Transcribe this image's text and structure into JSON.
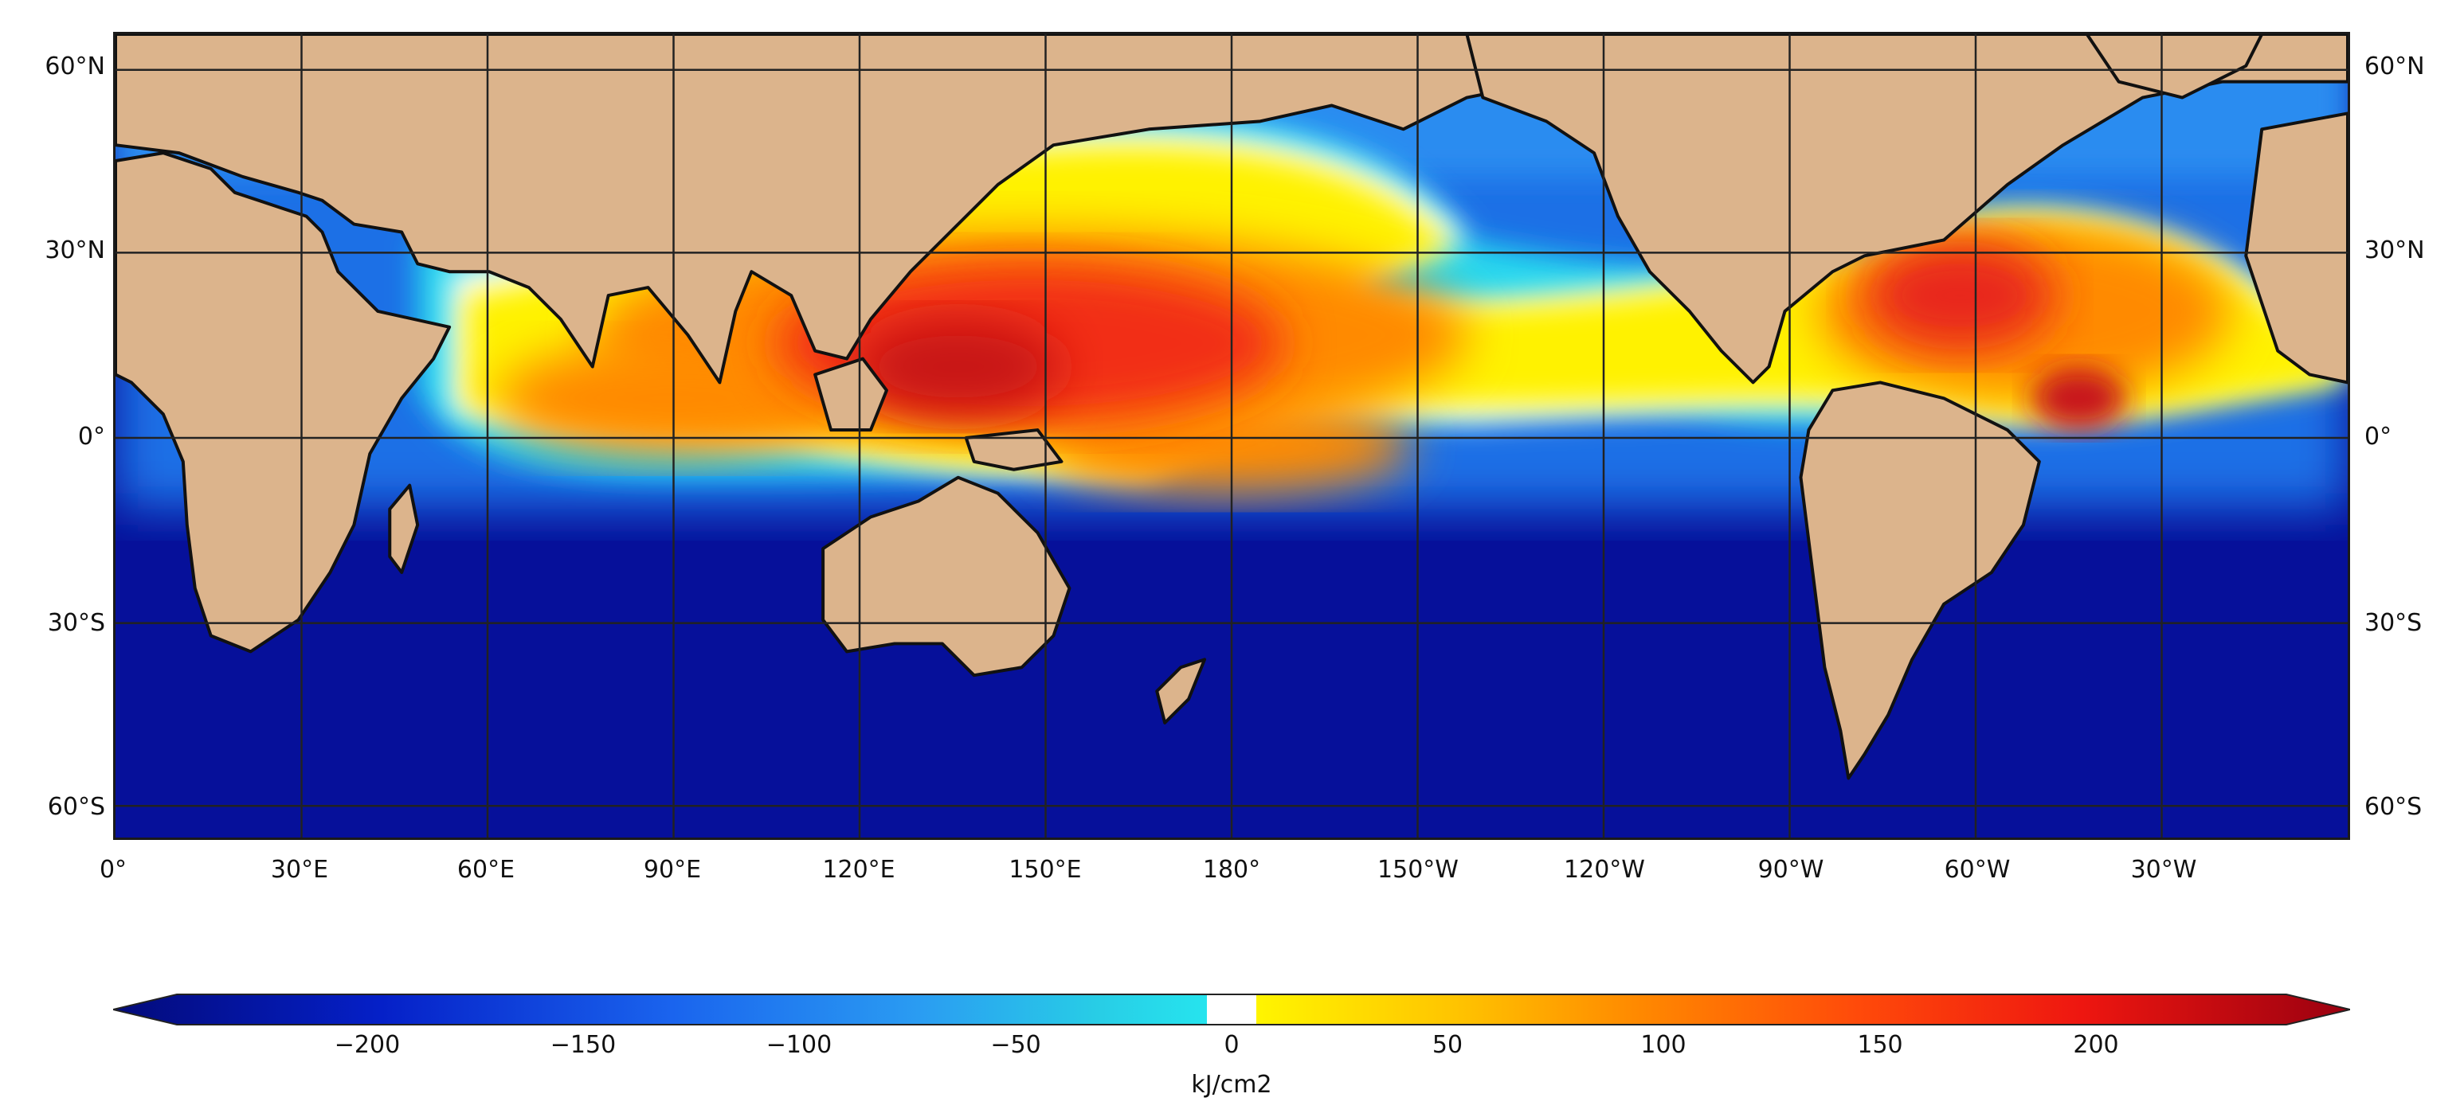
{
  "map": {
    "lat_ticks": [
      "60°N",
      "30°N",
      "0°",
      "30°S",
      "60°S"
    ],
    "lon_ticks": [
      "0°",
      "30°E",
      "60°E",
      "90°E",
      "120°E",
      "150°E",
      "180°",
      "150°W",
      "120°W",
      "90°W",
      "60°W",
      "30°W"
    ],
    "colors": {
      "land": "#dcb48c",
      "coast": "#111111",
      "grid": "#222222",
      "ocean_deep": "#06109a"
    }
  },
  "colorbar": {
    "ticks": [
      "−200",
      "−150",
      "−100",
      "−50",
      "0",
      "50",
      "100",
      "150",
      "200"
    ],
    "unit": "kJ/cm2",
    "range": [
      -250,
      250
    ]
  }
}
